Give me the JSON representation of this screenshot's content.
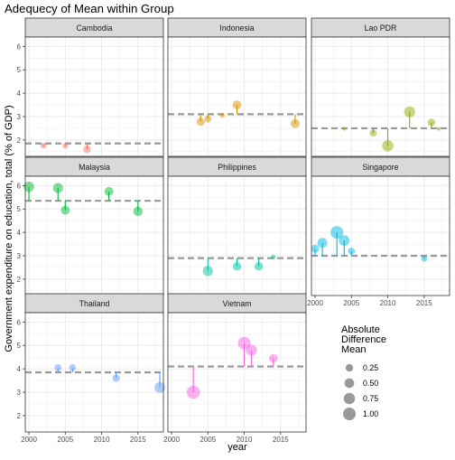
{
  "chart_data": {
    "type": "scatter",
    "title": "Adequecy of Mean within Group",
    "xlabel": "year",
    "ylabel": "Government expenditure on education, total (% of GDP)",
    "xlim": [
      1999.5,
      2018.5
    ],
    "ylim": [
      1.3,
      6.4
    ],
    "x_ticks": [
      2000,
      2005,
      2010,
      2015
    ],
    "y_ticks": [
      2,
      3,
      4,
      5,
      6
    ],
    "grid": true,
    "mean_line_color": "#999999",
    "legend": {
      "title_lines": [
        "Absolute",
        "Difference",
        "Mean"
      ],
      "position": "right",
      "entries": [
        {
          "label": "0.25",
          "value": 0.25
        },
        {
          "label": "0.50",
          "value": 0.5
        },
        {
          "label": "0.75",
          "value": 0.75
        },
        {
          "label": "1.00",
          "value": 1.0
        }
      ]
    },
    "panels": [
      {
        "name": "Cambodia",
        "color": "#F8766D",
        "mean": 1.85,
        "points": [
          {
            "x": 2002,
            "y": 1.75
          },
          {
            "x": 2005,
            "y": 1.75
          },
          {
            "x": 2008,
            "y": 1.6
          }
        ]
      },
      {
        "name": "Indonesia",
        "color": "#D39200",
        "mean": 3.1,
        "points": [
          {
            "x": 2004,
            "y": 2.78
          },
          {
            "x": 2005,
            "y": 2.9
          },
          {
            "x": 2007,
            "y": 3.05
          },
          {
            "x": 2009,
            "y": 3.5
          },
          {
            "x": 2017,
            "y": 2.7
          }
        ]
      },
      {
        "name": "Lao PDR",
        "color": "#93AA00",
        "mean": 2.5,
        "points": [
          {
            "x": 2004,
            "y": 2.48
          },
          {
            "x": 2008,
            "y": 2.3
          },
          {
            "x": 2010,
            "y": 1.75
          },
          {
            "x": 2013,
            "y": 3.2
          },
          {
            "x": 2016,
            "y": 2.75
          },
          {
            "x": 2017,
            "y": 2.48
          }
        ]
      },
      {
        "name": "Malaysia",
        "color": "#00BA38",
        "mean": 5.35,
        "points": [
          {
            "x": 2000,
            "y": 5.95
          },
          {
            "x": 2004,
            "y": 5.9
          },
          {
            "x": 2005,
            "y": 4.95
          },
          {
            "x": 2011,
            "y": 5.75
          },
          {
            "x": 2015,
            "y": 4.9
          }
        ]
      },
      {
        "name": "Philippines",
        "color": "#00C19F",
        "mean": 2.9,
        "points": [
          {
            "x": 2005,
            "y": 2.35
          },
          {
            "x": 2009,
            "y": 2.55
          },
          {
            "x": 2012,
            "y": 2.55
          },
          {
            "x": 2014,
            "y": 2.95
          }
        ]
      },
      {
        "name": "Singapore",
        "color": "#00B9E3",
        "mean": 3.0,
        "points": [
          {
            "x": 2000,
            "y": 3.3
          },
          {
            "x": 2001,
            "y": 3.55
          },
          {
            "x": 2003,
            "y": 4.0
          },
          {
            "x": 2004,
            "y": 3.65
          },
          {
            "x": 2005,
            "y": 3.2
          },
          {
            "x": 2015,
            "y": 2.88
          }
        ]
      },
      {
        "name": "Thailand",
        "color": "#619CFF",
        "mean": 3.85,
        "points": [
          {
            "x": 2004,
            "y": 4.05
          },
          {
            "x": 2006,
            "y": 4.05
          },
          {
            "x": 2012,
            "y": 3.6
          },
          {
            "x": 2018,
            "y": 3.2
          }
        ]
      },
      {
        "name": "Vietnam",
        "color": "#F564E3",
        "mean": 4.1,
        "points": [
          {
            "x": 2003,
            "y": 3.0
          },
          {
            "x": 2010,
            "y": 5.1
          },
          {
            "x": 2011,
            "y": 4.8
          },
          {
            "x": 2014,
            "y": 4.45
          }
        ]
      }
    ]
  }
}
